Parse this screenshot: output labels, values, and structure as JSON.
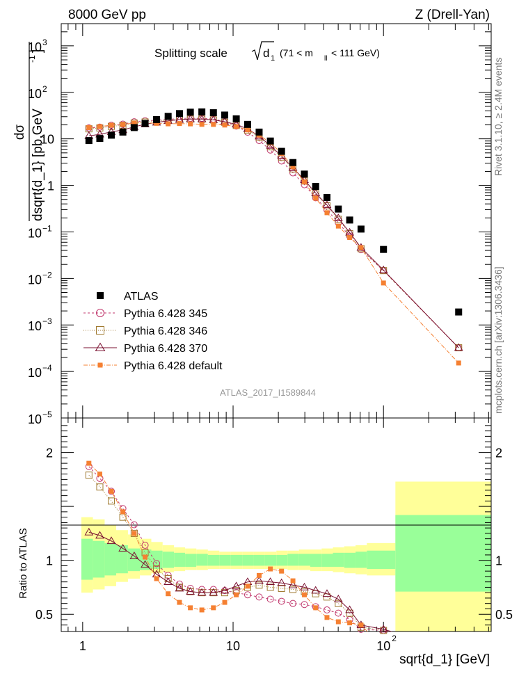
{
  "header": {
    "left": "8000 GeV pp",
    "right": "Z (Drell-Yan)"
  },
  "side": {
    "rivet": "Rivet 3.1.10, ≥ 2.4M events",
    "mcplots": "mcplots.cern.ch [arXiv:1306.3436]"
  },
  "chart_data": {
    "type": "scatter",
    "title": "Splitting scale",
    "title_symbol": "d",
    "title_sub": "1",
    "title_range_pre": "(71 < m",
    "title_range_sub": "ll",
    "title_range_post": " < 111 GeV)",
    "analysis_label": "ATLAS_2017_I1589844",
    "xlabel": "sqrt{d_1} [GeV]",
    "ylabel": "dσ/dsqrt{d_1} [pb,GeV⁻¹]",
    "ylabel_num": "dσ",
    "ylabel_den": "dsqrt{d_1} [pb,GeV",
    "ylabel_den_sup": "-1",
    "ylabel_den_end": "]",
    "ratio_ylabel": "Ratio to ATLAS",
    "xscale": "log",
    "xlim": [
      0.72,
      520
    ],
    "main": {
      "yscale": "log",
      "ylim": [
        1e-05,
        3000
      ],
      "ytick_labels": [
        {
          "base": "10",
          "exp": "3",
          "value": 1000
        },
        {
          "base": "10",
          "exp": "2",
          "value": 100
        },
        {
          "base": "10",
          "exp": "",
          "value": 10
        },
        {
          "base": "1",
          "exp": "",
          "value": 1
        },
        {
          "base": "10",
          "exp": "−1",
          "value": 0.1
        },
        {
          "base": "10",
          "exp": "−2",
          "value": 0.01
        },
        {
          "base": "10",
          "exp": "−3",
          "value": 0.001
        },
        {
          "base": "10",
          "exp": "−4",
          "value": 0.0001
        },
        {
          "base": "10",
          "exp": "−5",
          "value": 1e-05
        }
      ]
    },
    "ratio": {
      "ylim": [
        0.34,
        2.32
      ],
      "ytick_labels": [
        {
          "label": "2",
          "value": 2
        },
        {
          "label": "1",
          "value": 1
        },
        {
          "label": "0.5",
          "value": 0.5
        }
      ]
    },
    "xtick_labels": [
      {
        "label": "1",
        "sup": "",
        "value": 1
      },
      {
        "label": "10",
        "sup": "",
        "value": 10
      },
      {
        "label": "10",
        "sup": "2",
        "value": 100
      }
    ],
    "x": [
      1.1,
      1.3,
      1.55,
      1.85,
      2.2,
      2.6,
      3.1,
      3.7,
      4.4,
      5.2,
      6.2,
      7.4,
      8.8,
      10.5,
      12.5,
      14.9,
      17.7,
      21.0,
      25.0,
      29.8,
      35.4,
      42.1,
      50.1,
      59.6,
      70.9,
      100.0,
      316.0
    ],
    "series": [
      {
        "name": "ATLAS",
        "style": "data",
        "color": "#000000",
        "values": [
          9.2,
          10.2,
          12.0,
          14.0,
          17.5,
          21.5,
          26.0,
          30.5,
          35.0,
          37.5,
          38.0,
          36.5,
          32.5,
          27.0,
          20.5,
          14.0,
          9.0,
          5.4,
          3.1,
          1.75,
          0.95,
          0.55,
          0.31,
          0.18,
          0.115,
          0.042,
          0.0019
        ],
        "band_ratio": [
          {
            "x0": 0.98,
            "x1": 1.17,
            "g": [
              0.82,
              1.2
            ],
            "y": [
              0.7,
              1.4
            ]
          },
          {
            "x0": 1.17,
            "x1": 1.4,
            "g": [
              0.84,
              1.18
            ],
            "y": [
              0.73,
              1.38
            ]
          },
          {
            "x0": 1.4,
            "x1": 1.67,
            "g": [
              0.86,
              1.16
            ],
            "y": [
              0.76,
              1.33
            ]
          },
          {
            "x0": 1.67,
            "x1": 2.0,
            "g": [
              0.88,
              1.14
            ],
            "y": [
              0.8,
              1.28
            ]
          },
          {
            "x0": 2.0,
            "x1": 2.4,
            "g": [
              0.9,
              1.11
            ],
            "y": [
              0.83,
              1.24
            ]
          },
          {
            "x0": 2.4,
            "x1": 2.86,
            "g": [
              0.91,
              1.1
            ],
            "y": [
              0.86,
              1.2
            ]
          },
          {
            "x0": 2.86,
            "x1": 3.4,
            "g": [
              0.92,
              1.09
            ],
            "y": [
              0.88,
              1.17
            ]
          },
          {
            "x0": 3.4,
            "x1": 4.05,
            "g": [
              0.93,
              1.08
            ],
            "y": [
              0.89,
              1.14
            ]
          },
          {
            "x0": 4.05,
            "x1": 4.8,
            "g": [
              0.94,
              1.07
            ],
            "y": [
              0.9,
              1.12
            ]
          },
          {
            "x0": 4.8,
            "x1": 5.7,
            "g": [
              0.94,
              1.06
            ],
            "y": [
              0.91,
              1.11
            ]
          },
          {
            "x0": 5.7,
            "x1": 6.8,
            "g": [
              0.95,
              1.06
            ],
            "y": [
              0.91,
              1.1
            ]
          },
          {
            "x0": 6.8,
            "x1": 8.1,
            "g": [
              0.95,
              1.05
            ],
            "y": [
              0.92,
              1.09
            ]
          },
          {
            "x0": 8.1,
            "x1": 9.6,
            "g": [
              0.95,
              1.05
            ],
            "y": [
              0.92,
              1.08
            ]
          },
          {
            "x0": 9.6,
            "x1": 11.5,
            "g": [
              0.95,
              1.05
            ],
            "y": [
              0.92,
              1.08
            ]
          },
          {
            "x0": 11.5,
            "x1": 13.7,
            "g": [
              0.95,
              1.05
            ],
            "y": [
              0.92,
              1.08
            ]
          },
          {
            "x0": 13.7,
            "x1": 16.3,
            "g": [
              0.95,
              1.05
            ],
            "y": [
              0.92,
              1.08
            ]
          },
          {
            "x0": 16.3,
            "x1": 19.4,
            "g": [
              0.95,
              1.05
            ],
            "y": [
              0.92,
              1.08
            ]
          },
          {
            "x0": 19.4,
            "x1": 23.0,
            "g": [
              0.95,
              1.05
            ],
            "y": [
              0.92,
              1.09
            ]
          },
          {
            "x0": 23.0,
            "x1": 27.4,
            "g": [
              0.95,
              1.06
            ],
            "y": [
              0.91,
              1.09
            ]
          },
          {
            "x0": 27.4,
            "x1": 32.6,
            "g": [
              0.95,
              1.06
            ],
            "y": [
              0.91,
              1.1
            ]
          },
          {
            "x0": 32.6,
            "x1": 38.8,
            "g": [
              0.94,
              1.06
            ],
            "y": [
              0.9,
              1.1
            ]
          },
          {
            "x0": 38.8,
            "x1": 46.1,
            "g": [
              0.94,
              1.06
            ],
            "y": [
              0.9,
              1.11
            ]
          },
          {
            "x0": 46.1,
            "x1": 54.8,
            "g": [
              0.94,
              1.07
            ],
            "y": [
              0.89,
              1.12
            ]
          },
          {
            "x0": 54.8,
            "x1": 65.2,
            "g": [
              0.93,
              1.07
            ],
            "y": [
              0.88,
              1.13
            ]
          },
          {
            "x0": 65.2,
            "x1": 77.5,
            "g": [
              0.93,
              1.08
            ],
            "y": [
              0.87,
              1.14
            ]
          },
          {
            "x0": 77.5,
            "x1": 120.0,
            "g": [
              0.92,
              1.09
            ],
            "y": [
              0.86,
              1.16
            ]
          },
          {
            "x0": 120.0,
            "x1": 520.0,
            "g": [
              0.71,
              1.42
            ],
            "y": [
              0.3,
              1.73
            ]
          }
        ]
      },
      {
        "name": "Pythia 6.428 345",
        "style": "circle",
        "color": "#c0356b",
        "dash": "3,3",
        "ratio": [
          1.87,
          1.76,
          1.64,
          1.48,
          1.33,
          1.14,
          0.97,
          0.86,
          0.78,
          0.74,
          0.73,
          0.73,
          0.72,
          0.7,
          0.68,
          0.66,
          0.64,
          0.62,
          0.6,
          0.59,
          0.57,
          0.54,
          0.51,
          0.45,
          0.36,
          0.35,
          0.17
        ]
      },
      {
        "name": "Pythia 6.428 346",
        "style": "square",
        "color": "#a07a30",
        "dash": "1,2",
        "ratio": [
          1.79,
          1.68,
          1.55,
          1.4,
          1.25,
          1.07,
          0.92,
          0.83,
          0.75,
          0.71,
          0.7,
          0.7,
          0.7,
          0.72,
          0.75,
          0.77,
          0.75,
          0.74,
          0.73,
          0.71,
          0.69,
          0.66,
          0.6,
          0.51,
          0.38,
          0.35,
          0.17
        ]
      },
      {
        "name": "Pythia 6.428 370",
        "style": "triangle",
        "color": "#7a1030",
        "dash": "",
        "ratio": [
          1.26,
          1.23,
          1.18,
          1.11,
          1.04,
          0.96,
          0.87,
          0.8,
          0.74,
          0.71,
          0.7,
          0.7,
          0.72,
          0.76,
          0.8,
          0.81,
          0.8,
          0.79,
          0.77,
          0.75,
          0.72,
          0.69,
          0.64,
          0.54,
          0.4,
          0.36,
          0.17
        ]
      },
      {
        "name": "Pythia 6.428 default",
        "style": "filled-square",
        "color": "#f58032",
        "dash": "6,2,1,2",
        "ratio": [
          1.9,
          1.8,
          1.64,
          1.45,
          1.25,
          1.03,
          0.83,
          0.69,
          0.61,
          0.56,
          0.54,
          0.56,
          0.61,
          0.68,
          0.76,
          0.86,
          0.92,
          0.9,
          0.81,
          0.68,
          0.56,
          0.47,
          0.43,
          0.42,
          0.4,
          0.19,
          0.08
        ]
      }
    ]
  }
}
